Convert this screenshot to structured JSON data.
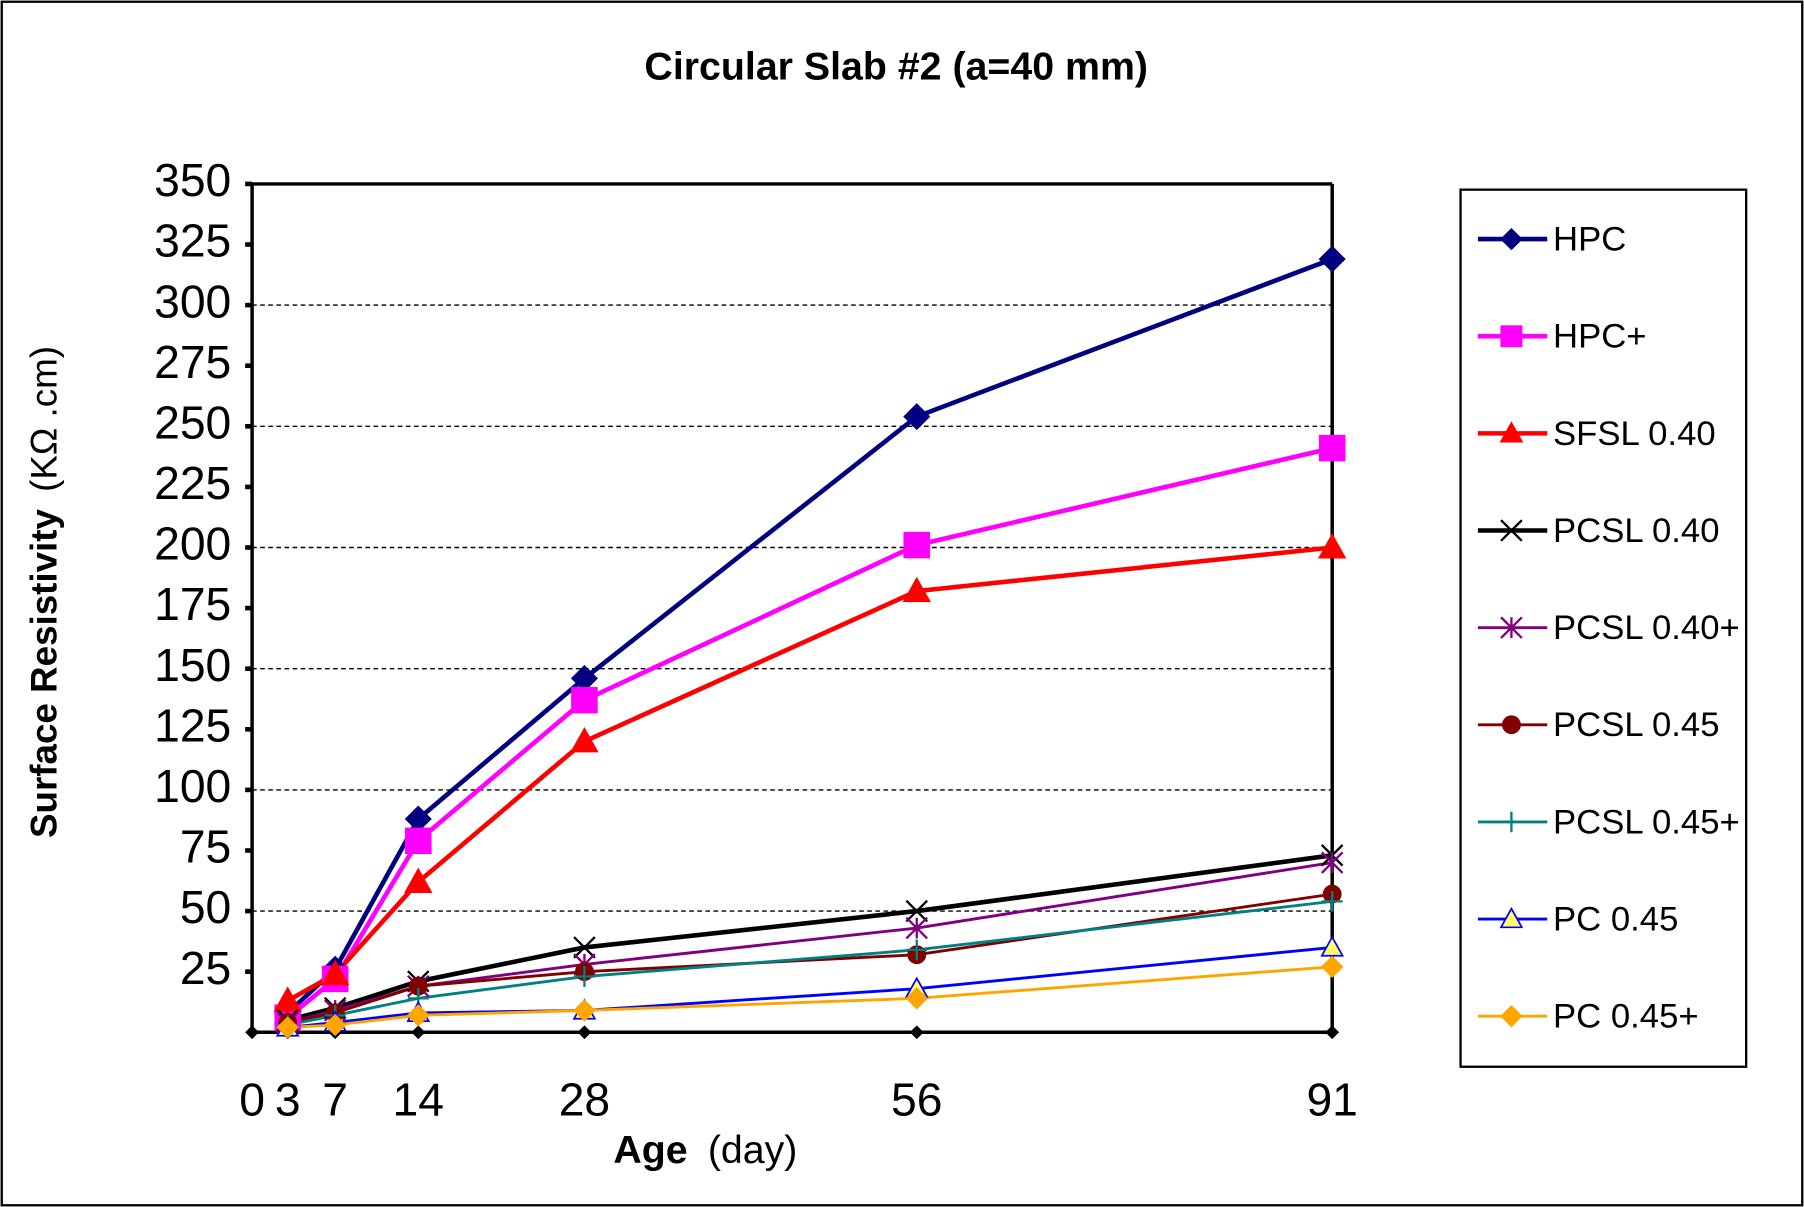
{
  "chart_data": {
    "type": "line",
    "title": "Circular Slab #2 (a=40 mm)",
    "x_label": "Age",
    "x_unit": "(day)",
    "y_label": "Surface Resistivity",
    "y_unit": "(KΩ .cm)",
    "x": [
      3,
      7,
      14,
      28,
      56,
      91
    ],
    "xlim": [
      0,
      91
    ],
    "xticks": [
      0,
      3,
      7,
      14,
      28,
      56,
      91
    ],
    "ylim": [
      0,
      350
    ],
    "yticks": [
      25,
      50,
      75,
      100,
      125,
      150,
      175,
      200,
      225,
      250,
      275,
      300,
      325,
      350
    ],
    "grid": true,
    "legend": "right",
    "series": [
      {
        "name": "HPC",
        "color": "#000080",
        "marker": "diamond",
        "values": [
          8,
          26,
          88,
          146,
          254,
          319
        ]
      },
      {
        "name": "HPC+",
        "color": "#ff00ff",
        "marker": "square",
        "values": [
          6,
          22,
          79,
          137,
          201,
          241
        ]
      },
      {
        "name": "SFSL 0.40",
        "color": "#ff0000",
        "marker": "triangle",
        "values": [
          13,
          24,
          62,
          120,
          182,
          200
        ]
      },
      {
        "name": "PCSL 0.40",
        "color": "#000000",
        "marker": "x",
        "values": [
          5,
          10,
          21,
          35,
          50,
          73
        ]
      },
      {
        "name": "PCSL 0.40+",
        "color": "#800080",
        "marker": "star",
        "values": [
          4,
          9,
          19,
          28,
          43,
          70
        ]
      },
      {
        "name": "PCSL 0.45",
        "color": "#800000",
        "marker": "circle",
        "values": [
          4,
          8,
          19,
          25,
          32,
          57
        ]
      },
      {
        "name": "PCSL 0.45+",
        "color": "#008080",
        "marker": "plus",
        "values": [
          3,
          7,
          14,
          23,
          34,
          54
        ]
      },
      {
        "name": "PC 0.45",
        "color": "#0000ff",
        "marker": "triangle",
        "marker_fill": "#ffff66",
        "values": [
          2,
          4,
          8,
          9,
          18,
          35
        ]
      },
      {
        "name": "PC 0.45+",
        "color": "#ffa500",
        "marker": "diamond",
        "values": [
          2,
          3,
          7,
          9,
          14,
          27
        ]
      }
    ]
  }
}
